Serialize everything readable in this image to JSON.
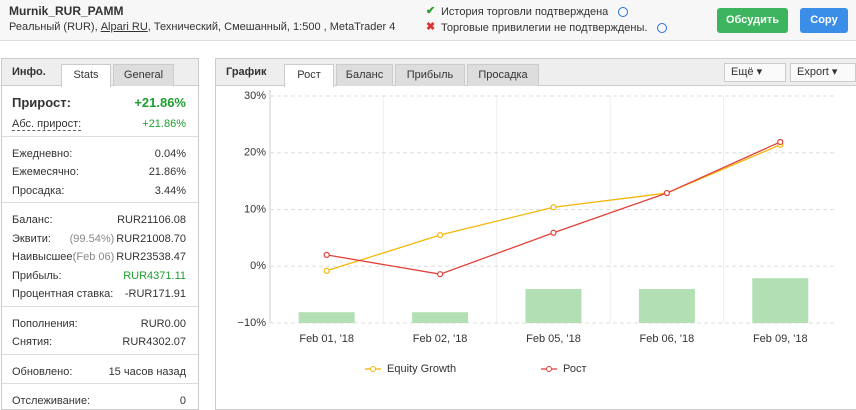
{
  "header": {
    "title": "Murnik_RUR_PAMM",
    "details": [
      "Реальный (RUR), ",
      "Alpari RU",
      ", Технический, Смешанный, 1:500 , MetaTrader 4"
    ]
  },
  "status": [
    "История торговли подтверждена",
    "Торговые привилегии не подтверждены."
  ],
  "buttons": [
    "Обсудить",
    "Copy"
  ],
  "left": {
    "tabs": [
      "Инфо.",
      "Stats",
      "General"
    ],
    "groups": [
      [
        {
          "label": "Прирост:",
          "value": "+21.86%"
        },
        {
          "label": "Абс. прирост:",
          "value": "+21.86%"
        }
      ],
      [
        {
          "label": "Ежедневно:",
          "value": "0.04%"
        },
        {
          "label": "Ежемесячно:",
          "value": "21.86%"
        },
        {
          "label": "Просадка:",
          "value": "3.44%"
        }
      ],
      [
        {
          "label": "Баланс:",
          "value": "RUR21106.08"
        },
        {
          "label": "Эквити:",
          "note": "(99.54%)",
          "value": "RUR21008.70"
        },
        {
          "label": "Наивысшее:",
          "note": "(Feb 06)",
          "value": "RUR23538.47"
        },
        {
          "label": "Прибыль:",
          "value": "RUR4371.11"
        },
        {
          "label": "Процентная ставка:",
          "value": "-RUR171.91"
        }
      ],
      [
        {
          "label": "Пополнения:",
          "value": "RUR0.00"
        },
        {
          "label": "Снятия:",
          "value": "RUR4302.07"
        }
      ],
      [
        {
          "label": "Обновлено:",
          "value": "15 часов назад"
        }
      ],
      [
        {
          "label": "Отслеживание:",
          "value": "0"
        }
      ]
    ]
  },
  "right": {
    "title": "График",
    "tabs": [
      "Рост",
      "Баланс",
      "Прибыль",
      "Просадка"
    ],
    "menus": [
      "Ещё",
      "Export"
    ]
  },
  "chart_data": {
    "type": "line",
    "categories": [
      "Feb 01, '18",
      "Feb 02, '18",
      "Feb 05, '18",
      "Feb 06, '18",
      "Feb 09, '18"
    ],
    "series": [
      {
        "name": "Equity Growth",
        "color": "#f2b705",
        "values": [
          -0.8,
          5.5,
          10.4,
          12.9,
          21.4
        ]
      },
      {
        "name": "Рост",
        "color": "#e0413b",
        "values": [
          2.0,
          -1.4,
          5.9,
          12.9,
          21.9
        ]
      }
    ],
    "bars": {
      "color": "#b2e0b4",
      "values": [
        -8.1,
        -8.1,
        -4.0,
        -4.0,
        -2.1
      ]
    },
    "ylim": [
      -10,
      30
    ],
    "yticks": [
      {
        "value": -10,
        "label": "−10%"
      },
      {
        "value": 0,
        "label": "0%"
      },
      {
        "value": 10,
        "label": "10%"
      },
      {
        "value": 20,
        "label": "20%"
      },
      {
        "value": 30,
        "label": "30%"
      }
    ],
    "grid": true
  }
}
